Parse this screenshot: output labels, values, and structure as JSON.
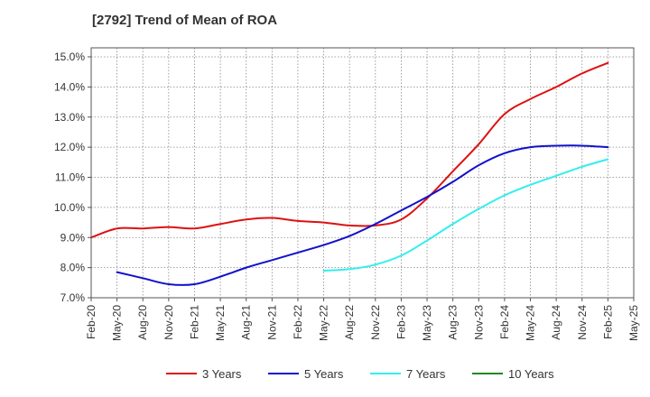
{
  "chart_data": {
    "type": "line",
    "title": "[2792]  Trend of Mean of ROA",
    "xlabel": "",
    "ylabel": "",
    "x_ticks": [
      "Feb-20",
      "May-20",
      "Aug-20",
      "Nov-20",
      "Feb-21",
      "May-21",
      "Aug-21",
      "Nov-21",
      "Feb-22",
      "May-22",
      "Aug-22",
      "Nov-22",
      "Feb-23",
      "May-23",
      "Aug-23",
      "Nov-23",
      "Feb-24",
      "May-24",
      "Aug-24",
      "Nov-24",
      "Feb-25",
      "May-25"
    ],
    "y_ticks": [
      "7.0%",
      "8.0%",
      "9.0%",
      "10.0%",
      "11.0%",
      "12.0%",
      "13.0%",
      "14.0%",
      "15.0%"
    ],
    "ylim": [
      7.0,
      15.3
    ],
    "grid": true,
    "legend_position": "bottom",
    "series": [
      {
        "name": "3 Years",
        "color": "#dd1111",
        "points": [
          [
            "Feb-20",
            9.0
          ],
          [
            "May-20",
            9.3
          ],
          [
            "Aug-20",
            9.3
          ],
          [
            "Nov-20",
            9.35
          ],
          [
            "Feb-21",
            9.3
          ],
          [
            "May-21",
            9.45
          ],
          [
            "Aug-21",
            9.6
          ],
          [
            "Nov-21",
            9.65
          ],
          [
            "Feb-22",
            9.55
          ],
          [
            "May-22",
            9.5
          ],
          [
            "Aug-22",
            9.4
          ],
          [
            "Nov-22",
            9.4
          ],
          [
            "Feb-23",
            9.6
          ],
          [
            "May-23",
            10.3
          ],
          [
            "Aug-23",
            11.2
          ],
          [
            "Nov-23",
            12.1
          ],
          [
            "Feb-24",
            13.1
          ],
          [
            "May-24",
            13.6
          ],
          [
            "Aug-24",
            14.0
          ],
          [
            "Nov-24",
            14.45
          ],
          [
            "Feb-25",
            14.8
          ]
        ]
      },
      {
        "name": "5 Years",
        "color": "#1111cc",
        "points": [
          [
            "May-20",
            7.85
          ],
          [
            "Aug-20",
            7.65
          ],
          [
            "Nov-20",
            7.45
          ],
          [
            "Feb-21",
            7.45
          ],
          [
            "May-21",
            7.7
          ],
          [
            "Aug-21",
            8.0
          ],
          [
            "Nov-21",
            8.25
          ],
          [
            "Feb-22",
            8.5
          ],
          [
            "May-22",
            8.75
          ],
          [
            "Aug-22",
            9.05
          ],
          [
            "Nov-22",
            9.45
          ],
          [
            "Feb-23",
            9.9
          ],
          [
            "May-23",
            10.35
          ],
          [
            "Aug-23",
            10.85
          ],
          [
            "Nov-23",
            11.4
          ],
          [
            "Feb-24",
            11.8
          ],
          [
            "May-24",
            12.0
          ],
          [
            "Aug-24",
            12.05
          ],
          [
            "Nov-24",
            12.05
          ],
          [
            "Feb-25",
            12.0
          ]
        ]
      },
      {
        "name": "7 Years",
        "color": "#33eeee",
        "points": [
          [
            "May-22",
            7.9
          ],
          [
            "Aug-22",
            7.95
          ],
          [
            "Nov-22",
            8.1
          ],
          [
            "Feb-23",
            8.4
          ],
          [
            "May-23",
            8.9
          ],
          [
            "Aug-23",
            9.45
          ],
          [
            "Nov-23",
            9.95
          ],
          [
            "Feb-24",
            10.4
          ],
          [
            "May-24",
            10.75
          ],
          [
            "Aug-24",
            11.05
          ],
          [
            "Nov-24",
            11.35
          ],
          [
            "Feb-25",
            11.6
          ]
        ]
      },
      {
        "name": "10 Years",
        "color": "#228822",
        "points": []
      }
    ]
  }
}
